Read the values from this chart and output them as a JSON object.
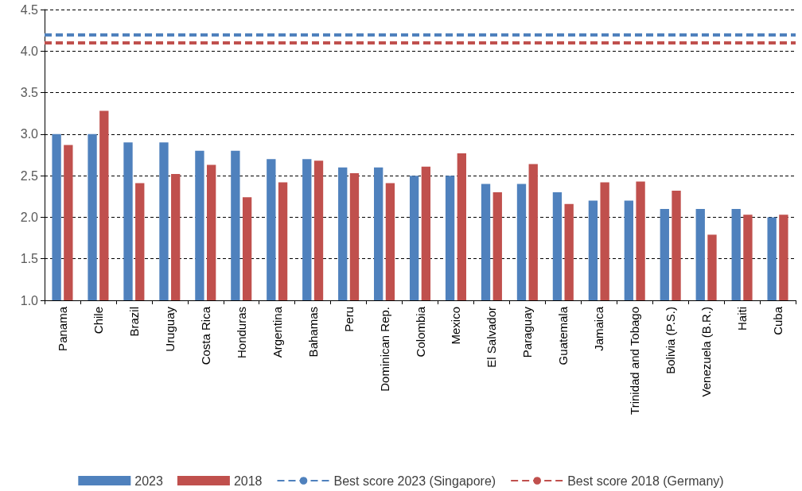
{
  "chart_data": {
    "type": "bar",
    "categories": [
      "Panama",
      "Chile",
      "Brazil",
      "Uruguay",
      "Costa Rica",
      "Honduras",
      "Argentina",
      "Bahamas",
      "Peru",
      "Dominican Rep.",
      "Colombia",
      "Mexico",
      "El Salvador",
      "Paraguay",
      "Guatemala",
      "Jamaica",
      "Trinidad and Tobago",
      "Bolivia (P.S.)",
      "Venezuela (B.R.)",
      "Haiti",
      "Cuba"
    ],
    "series": [
      {
        "name": "2023",
        "color": "#4f81bd",
        "values": [
          3.0,
          3.0,
          2.9,
          2.9,
          2.8,
          2.8,
          2.7,
          2.7,
          2.6,
          2.6,
          2.5,
          2.5,
          2.4,
          2.4,
          2.3,
          2.2,
          2.2,
          2.1,
          2.1,
          2.1,
          2.0
        ]
      },
      {
        "name": "2018",
        "color": "#c0504d",
        "values": [
          2.87,
          3.28,
          2.41,
          2.52,
          2.63,
          2.24,
          2.42,
          2.68,
          2.53,
          2.41,
          2.61,
          2.77,
          2.3,
          2.64,
          2.16,
          2.42,
          2.43,
          2.32,
          1.79,
          2.03,
          2.03
        ]
      }
    ],
    "ref_lines": [
      {
        "axis": "y",
        "value": 4.2,
        "label": "Best score 2023 (Singapore)",
        "color": "#4f81bd",
        "line_style": "dashed"
      },
      {
        "axis": "y",
        "value": 4.1,
        "label": "Best score 2018 (Germany)",
        "color": "#c0504d",
        "line_style": "dashed"
      }
    ],
    "ylim": [
      1.0,
      4.5
    ],
    "yticks": [
      {
        "value": 1,
        "label": "1.0"
      },
      1.5,
      {
        "value": 2,
        "label": "2.0"
      },
      2.5,
      {
        "value": 3,
        "label": "3.0"
      },
      3.5,
      {
        "value": 4,
        "label": "4.0"
      },
      4.5
    ],
    "grid": "y",
    "legend": "bottom"
  }
}
